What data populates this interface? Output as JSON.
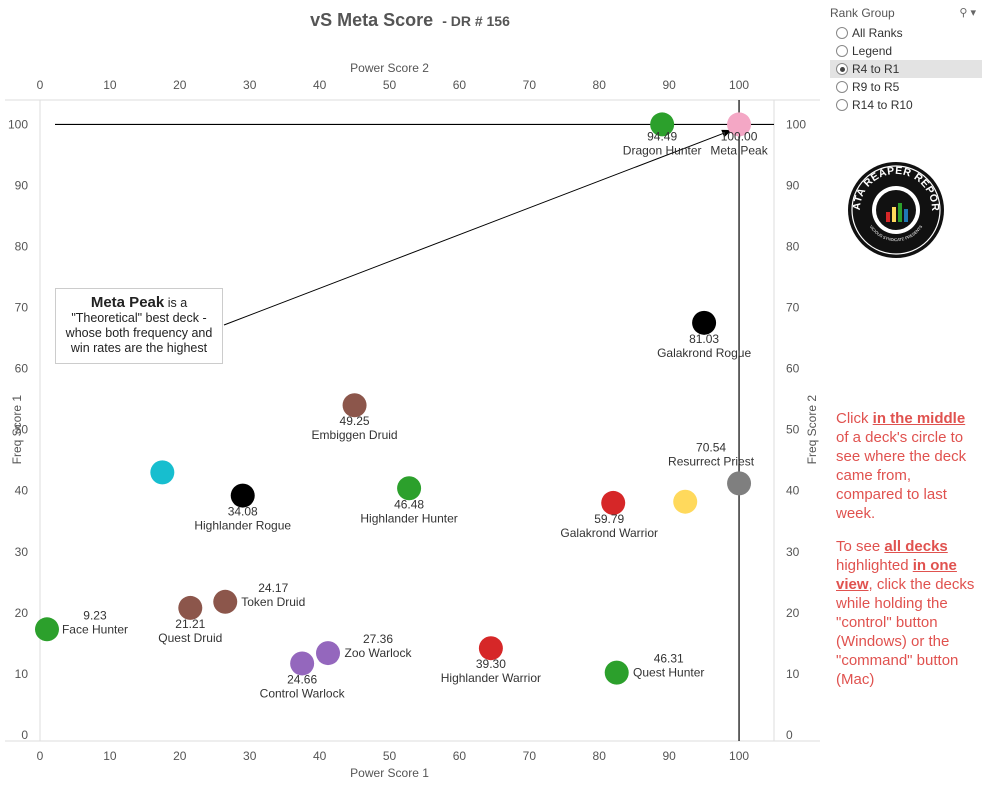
{
  "title": "vS Meta Score",
  "subtitle": "- DR # 156",
  "filter": {
    "title": "Rank Group",
    "search_icon": "search-icon",
    "dropdown_icon": "chevron-down-icon",
    "options": [
      "All Ranks",
      "Legend",
      "R4 to R1",
      "R9 to R5",
      "R14 to R10"
    ],
    "selected": "R4 to R1"
  },
  "callout": {
    "bold": "Meta Peak",
    "rest": "is a \"Theoretical\" best deck - whose both frequency and win rates are the highest"
  },
  "logo": {
    "text": "DATA REAPER REPORT",
    "subtext": "VICIOUS SYNDICATE PRESENTS"
  },
  "note1": {
    "p1": "Click ",
    "link": "in the middle",
    "p2": " of a deck's circle to see where the deck came from, compared to last week."
  },
  "note2": {
    "p1": "To see ",
    "link1": "all decks ",
    "p2": " highlighted ",
    "link2": "in one view",
    "p3": ", click the decks while holding the \"control\" button (Windows) or the \"command\" button (Mac)"
  },
  "chart_data": {
    "type": "scatter",
    "xlabel": "Power Score 1",
    "xlabel_top": "Power Score 2",
    "ylabel": "Freq Score 1",
    "ylabel_right": "Freq Score 2",
    "xlim": [
      0,
      105
    ],
    "ylim": [
      -1,
      104
    ],
    "xticks": [
      0,
      10,
      20,
      30,
      40,
      50,
      60,
      70,
      80,
      90,
      100
    ],
    "yticks": [
      0,
      10,
      20,
      30,
      40,
      50,
      60,
      70,
      80,
      90,
      100
    ],
    "reference_lines": {
      "x": 100,
      "y": 100
    },
    "points": [
      {
        "name": "Meta Peak",
        "score": "100.00",
        "x": 100,
        "y": 100,
        "color": "#f4a7c5"
      },
      {
        "name": "Dragon Hunter",
        "score": "94.49",
        "x": 89,
        "y": 100,
        "color": "#2ca02c"
      },
      {
        "name": "Galakrond Rogue",
        "score": "81.03",
        "x": 95,
        "y": 67.5,
        "color": "#000000"
      },
      {
        "name": "Embiggen Druid",
        "score": "49.25",
        "x": 45,
        "y": 54,
        "color": "#8c564b"
      },
      {
        "name": "Resurrect Priest",
        "score": "70.54",
        "x": 100,
        "y": 41.2,
        "color": "#7f7f7f"
      },
      {
        "name": "",
        "score": "",
        "x": 92.3,
        "y": 38.2,
        "color": "#ffd95c"
      },
      {
        "name": "",
        "score": "",
        "x": 17.5,
        "y": 43,
        "color": "#17becf"
      },
      {
        "name": "Highlander Rogue",
        "score": "34.08",
        "x": 29,
        "y": 39.2,
        "color": "#000000"
      },
      {
        "name": "Highlander Hunter",
        "score": "46.48",
        "x": 52.8,
        "y": 40.4,
        "color": "#2ca02c"
      },
      {
        "name": "Galakrond Warrior",
        "score": "59.79",
        "x": 82,
        "y": 38,
        "color": "#d62728"
      },
      {
        "name": "Face Hunter",
        "score": "9.23",
        "x": 1,
        "y": 17.3,
        "color": "#2ca02c"
      },
      {
        "name": "Quest Druid",
        "score": "21.21",
        "x": 21.5,
        "y": 20.8,
        "color": "#8c564b"
      },
      {
        "name": "Token Druid",
        "score": "24.17",
        "x": 26.5,
        "y": 21.8,
        "color": "#8c564b"
      },
      {
        "name": "Control Warlock",
        "score": "24.66",
        "x": 37.5,
        "y": 11.7,
        "color": "#9467bd"
      },
      {
        "name": "Zoo Warlock",
        "score": "27.36",
        "x": 41.2,
        "y": 13.4,
        "color": "#9467bd"
      },
      {
        "name": "Highlander Warrior",
        "score": "39.30",
        "x": 64.5,
        "y": 14.2,
        "color": "#d62728"
      },
      {
        "name": "Quest Hunter",
        "score": "46.31",
        "x": 82.5,
        "y": 10.2,
        "color": "#2ca02c"
      }
    ]
  }
}
